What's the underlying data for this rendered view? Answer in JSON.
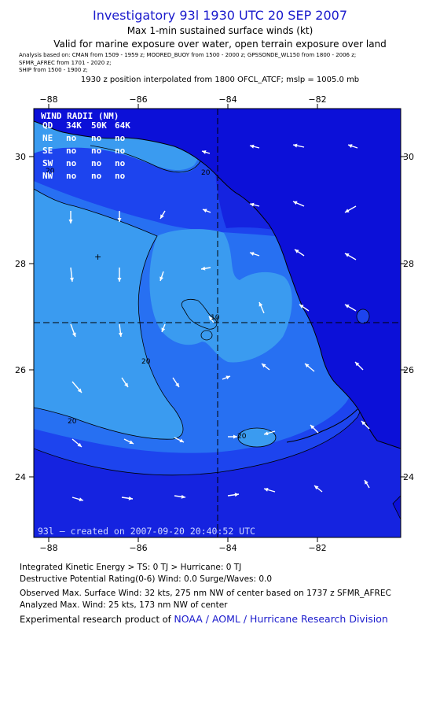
{
  "header": {
    "title": "Investigatory 93l 1930 UTC 20 SEP 2007",
    "subtitle_1": "Max 1-min sustained surface winds (kt)",
    "subtitle_2": "Valid for marine exposure over water, open terrain exposure over land",
    "analysis_line_1": "Analysis based on:  CMAN from 1509 - 1959 z;   MOORED_BUOY from 1500 - 2000 z;   GPSSONDE_WL150 from 1800 - 2006 z;",
    "analysis_line_2": "SFMR_AFREC from 1701 - 2020 z;",
    "analysis_line_3": "SHIP from 1500 - 1900 z;",
    "interpolation_note": "1930 z position interpolated from 1800 OFCL_ATCF; mslp = 1005.0 mb"
  },
  "map": {
    "x_ticks": [
      "−88",
      "−86",
      "−84",
      "−82"
    ],
    "y_ticks": [
      "30",
      "28",
      "26",
      "24"
    ],
    "contour_labels": [
      "20",
      "20",
      "20",
      "10",
      "20",
      "20"
    ],
    "wind_radii": {
      "title": "WIND RADII (NM)",
      "header": [
        "QD",
        "34K",
        "50K",
        "64K"
      ],
      "rows": [
        {
          "quadrant": "NE",
          "values": [
            "no",
            "no",
            "no"
          ]
        },
        {
          "quadrant": "SE",
          "values": [
            "no",
            "no",
            "no"
          ]
        },
        {
          "quadrant": "SW",
          "values": [
            "no",
            "no",
            "no"
          ]
        },
        {
          "quadrant": "NW",
          "values": [
            "no",
            "no",
            "no"
          ]
        }
      ]
    },
    "footer_text": "93l – created on 2007-09-20 20:40:52 UTC",
    "colors": {
      "band_0_10": "#3a9bf0",
      "band_10_20": "#2770f2",
      "band_20_30": "#1d44ee",
      "band_30_plus": "#1523e0",
      "land": "#0c10d8",
      "arrow": "#ffffff",
      "contour": "#000000"
    }
  },
  "footer": {
    "ike": "Integrated Kinetic Energy > TS: 0 TJ   > Hurricane: 0 TJ",
    "dp": "Destructive Potential Rating(0-6)   Wind: 0.0 Surge/Waves: 0.0",
    "observed": "Observed Max. Surface Wind: 32 kts, 275 nm NW of center based on 1737 z SFMR_AFREC",
    "analyzed": "Analyzed Max. Wind: 25 kts, 173 nm NW of center",
    "experimental_prefix": "Experimental research product of",
    "experimental_org": "NOAA / AOML / Hurricane Research Division"
  }
}
